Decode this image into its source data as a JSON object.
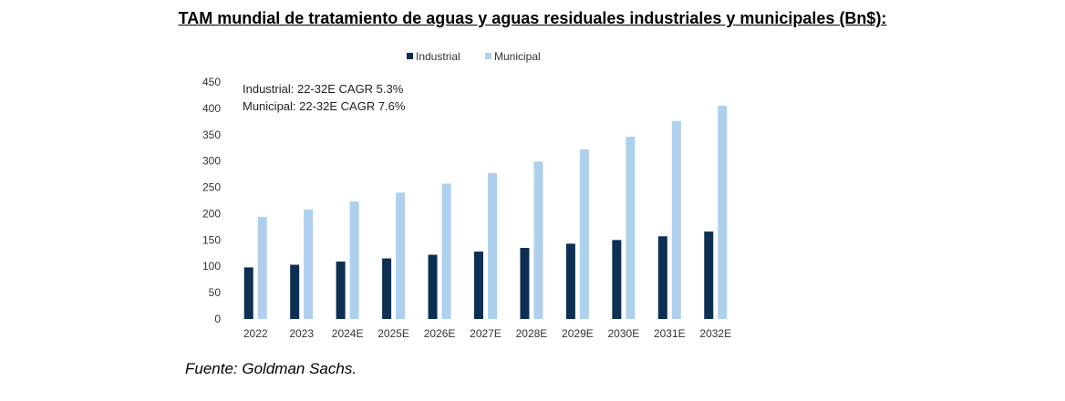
{
  "title": "TAM mundial de tratamiento de aguas y aguas residuales industriales y municipales (Bn$):",
  "source": "Fuente: Goldman Sachs.",
  "colors": {
    "industrial": "#0d2f52",
    "municipal": "#aed0ec"
  },
  "chart_data": {
    "type": "bar",
    "categories": [
      "2022",
      "2023",
      "2024E",
      "2025E",
      "2026E",
      "2027E",
      "2028E",
      "2029E",
      "2030E",
      "2031E",
      "2032E"
    ],
    "series": [
      {
        "name": "Industrial",
        "values": [
          98,
          103,
          109,
          115,
          122,
          128,
          135,
          143,
          150,
          157,
          166
        ]
      },
      {
        "name": "Municipal",
        "values": [
          194,
          208,
          223,
          240,
          257,
          277,
          299,
          322,
          346,
          376,
          405
        ]
      }
    ],
    "ylim": [
      0,
      450
    ],
    "yticks": [
      0,
      50,
      100,
      150,
      200,
      250,
      300,
      350,
      400,
      450
    ],
    "annotations": [
      "Industrial: 22-32E CAGR 5.3%",
      "Municipal: 22-32E CAGR 7.6%"
    ],
    "legend": "top",
    "grid": false
  }
}
